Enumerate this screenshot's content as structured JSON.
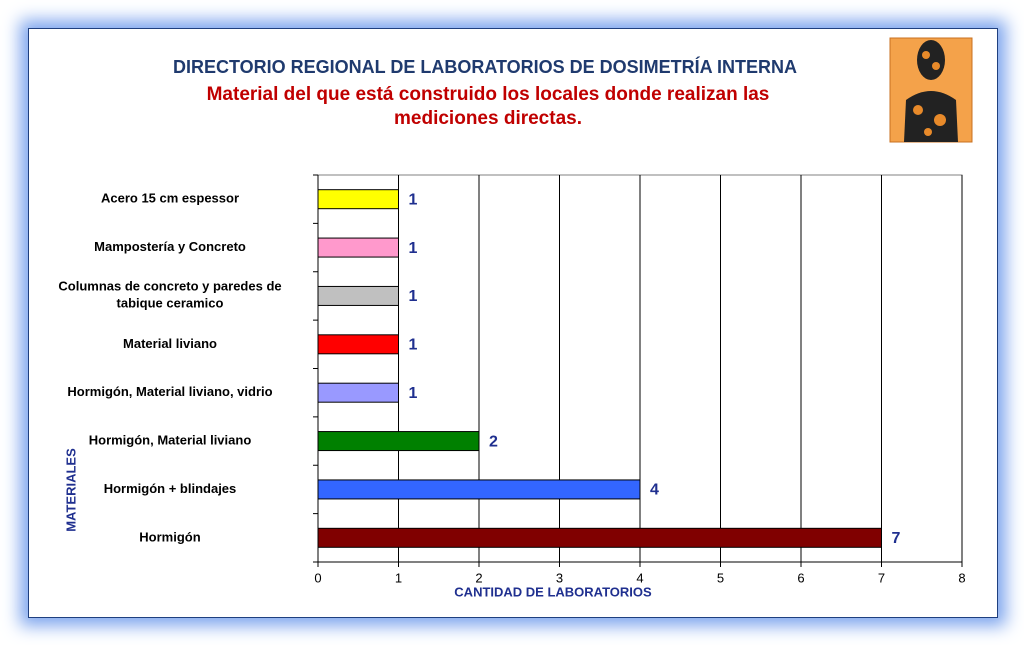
{
  "chart_data": {
    "type": "barh",
    "title": "DIRECTORIO REGIONAL DE LABORATORIOS DE DOSIMETRÍA INTERNA",
    "subtitle": [
      "Material del que está construido los locales donde realizan las",
      "mediciones directas."
    ],
    "categories": [
      "Acero 15 cm espessor",
      "Mampostería  y Concreto",
      "Columnas de concreto y paredes de\ntabique ceramico",
      "Material liviano",
      "Hormigón, Material liviano, vidrio",
      "Hormigón, Material liviano",
      "Hormigón + blindajes",
      "Hormigón"
    ],
    "values": [
      1,
      1,
      1,
      1,
      1,
      2,
      4,
      7
    ],
    "colors": [
      "#ffff00",
      "#ff99cc",
      "#c0c0c0",
      "#ff0000",
      "#9999ff",
      "#008000",
      "#3366ff",
      "#800000"
    ],
    "xlabel": "CANTIDAD DE LABORATORIOS",
    "ylabel": "MATERIALES",
    "xlim": [
      0,
      8
    ],
    "xticks": [
      0,
      1,
      2,
      3,
      4,
      5,
      6,
      7,
      8
    ],
    "grid": true
  }
}
